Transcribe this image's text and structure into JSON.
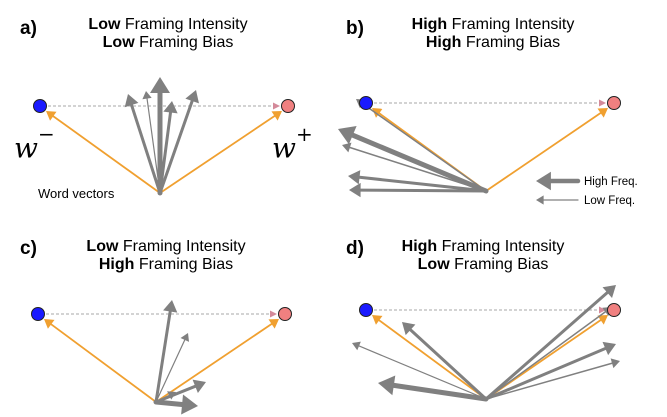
{
  "panels": {
    "a": {
      "letter": "a)",
      "line1_bold": "Low",
      "line1_rest": " Framing Intensity",
      "line2_bold": "Low",
      "line2_rest": " Framing Bias"
    },
    "b": {
      "letter": "b)",
      "line1_bold": "High",
      "line1_rest": " Framing Intensity",
      "line2_bold": "High",
      "line2_rest": " Framing Bias"
    },
    "c": {
      "letter": "c)",
      "line1_bold": "Low",
      "line1_rest": " Framing Intensity",
      "line2_bold": "High",
      "line2_rest": " Framing Bias"
    },
    "d": {
      "letter": "d)",
      "line1_bold": "High",
      "line1_rest": " Framing Intensity",
      "line2_bold": "Low",
      "line2_rest": " Framing Bias"
    }
  },
  "labels": {
    "w_minus_base": "w",
    "w_minus_sup": "−",
    "w_plus_base": "w",
    "w_plus_sup": "+",
    "word_vectors": "Word vectors"
  },
  "legend": {
    "high": "High Freq.",
    "low": "Low Freq."
  },
  "colors": {
    "pole_minus": "#1a1aff",
    "pole_plus": "#f08080",
    "pole_axis": "#f0a030",
    "word_vector": "#808080",
    "dashed_axis": "#b9b9b9"
  }
}
